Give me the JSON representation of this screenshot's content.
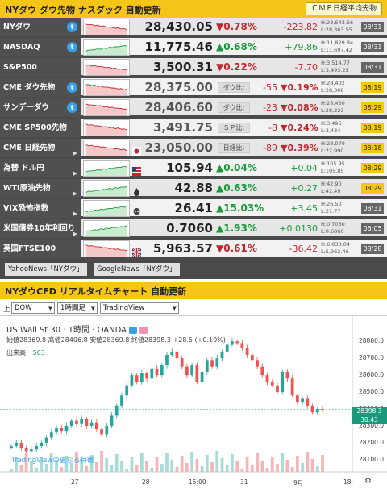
{
  "top_header": {
    "title": "NYダウ ダウ先物 ナスダック 自動更新",
    "button_label": "ＣＭＥ日経平均先物"
  },
  "rows": [
    {
      "name": "NYダウ",
      "icon": "twitter-icon",
      "value": "28,430.05",
      "change_pct": "▼0.78%",
      "diff": "-223.82",
      "high": "H:28,643.66",
      "low": "L:28,363.55",
      "date": "08/31",
      "date_style": "grey",
      "dir": "dn"
    },
    {
      "name": "NASDAQ",
      "icon": "twitter-icon",
      "value": "11,775.46",
      "change_pct": "▲0.68%",
      "diff": "+79.86",
      "high": "H:11,829.84",
      "low": "L:11,697.42",
      "date": "08/31",
      "date_style": "grey",
      "dir": "up"
    },
    {
      "name": "S&P500",
      "icon": "",
      "value": "3,500.31",
      "change_pct": "▼0.22%",
      "diff": "-7.70",
      "high": "H:3,514.77",
      "low": "L:3,493.25",
      "date": "08/31",
      "date_style": "grey",
      "dir": "dn"
    },
    {
      "name": "CME ダウ先物",
      "icon": "twitter-icon",
      "value": "28,375.00",
      "label": "ダウ比:",
      "diff": "-55",
      "change_pct": "▼0.19%",
      "high": "H:28,402",
      "low": "L:28,308",
      "date": "08:19",
      "date_style": "yel",
      "dir": "dn"
    },
    {
      "name": "サンデーダウ",
      "icon": "twitter-icon",
      "value": "28,406.60",
      "label": "ダウ比:",
      "diff": "-23",
      "change_pct": "▼0.08%",
      "high": "H:28,430",
      "low": "L:28,323",
      "date": "08:29",
      "date_style": "yel",
      "dir": "dn"
    },
    {
      "name": "CME SP500先物",
      "icon": "",
      "value": "3,491.75",
      "label": "ＳＰ比:",
      "diff": "-8",
      "change_pct": "▼0.24%",
      "high": "H:3,496",
      "low": "L:3,484",
      "date": "08:19",
      "date_style": "yel",
      "dir": "dn"
    },
    {
      "name": "CME 日経先物",
      "icon": "arrow",
      "value": "23,050.00",
      "label": "日経比:",
      "diff": "-89",
      "change_pct": "▼0.39%",
      "high": "H:23,070",
      "low": "L:22,990",
      "date": "08:18",
      "date_style": "yel",
      "dir": "dn",
      "flag": "japan-flag-icon"
    },
    {
      "name": "為替 ドル円",
      "icon": "arrow",
      "value": "105.94",
      "change_pct": "▲0.04%",
      "diff": "+0.04",
      "high": "H:105.95",
      "low": "L:105.85",
      "date": "08:29",
      "date_style": "yel",
      "dir": "up",
      "flag": "usa-flag-icon"
    },
    {
      "name": "WTI原油先物",
      "icon": "arrow",
      "value": "42.88",
      "change_pct": "▲0.63%",
      "diff": "+0.27",
      "high": "H:42.90",
      "low": "L:42.49",
      "date": "08:29",
      "date_style": "yel",
      "dir": "up",
      "flag": "oil-drop-icon"
    },
    {
      "name": "VIX恐怖指数",
      "icon": "arrow",
      "value": "26.41",
      "change_pct": "▲15.03%",
      "diff": "+3.45",
      "high": "H:26.50",
      "low": "L:21.77",
      "date": "08/31",
      "date_style": "grey",
      "dir": "up",
      "flag": "skull-icon"
    },
    {
      "name": "米国債券10年利回り",
      "icon": "arrow",
      "value": "0.7060",
      "change_pct": "▲1.93%",
      "diff": "+0.0130",
      "high": "H:0.7060",
      "low": "L:0.6860",
      "date": "06:05",
      "date_style": "grey",
      "dir": "up"
    },
    {
      "name": "英国FTSE100",
      "icon": "",
      "value": "5,963.57",
      "change_pct": "▼0.61%",
      "diff": "-36.42",
      "high": "H:6,033.04",
      "low": "L:5,962.46",
      "date": "08/28",
      "date_style": "grey",
      "dir": "dn",
      "flag": "uk-flag-icon"
    }
  ],
  "news": {
    "yahoo": "YahooNews「NYダウ」",
    "google": "GoogleNews「NYダウ」"
  },
  "chart_header": {
    "title": "NYダウCFD リアルタイムチャート 自動更新"
  },
  "toolbar": {
    "label": "上",
    "symbol": "DOW",
    "interval": "1時間足",
    "provider": "TradingView"
  },
  "chart": {
    "title": "US Wall St 30 · 1時間 · OANDA",
    "ohlc": "始値28369.8 高値28406.8 安値28369.8 終値28398.3 +28.5 (+0.10%)",
    "volume_label": "出来高",
    "volume_value": "503",
    "tv_link": "TradingViewの更なる特徴",
    "last_price": "28398.3",
    "countdown": "30:43",
    "yticks": [
      "28800.0",
      "28700.0",
      "28600.0",
      "28500.0",
      "28400.0",
      "28300.0",
      "28200.0",
      "28100.0"
    ],
    "xticks": [
      "27",
      "28",
      "15:00",
      "31",
      "9月",
      "18:"
    ],
    "up_color": "#26a69a",
    "down_color": "#ef5350"
  },
  "chart_data": {
    "type": "candlestick",
    "title": "US Wall St 30 · 1時間 · OANDA",
    "yticks": [
      28800,
      28700,
      28600,
      28500,
      28400,
      28300,
      28200,
      28100
    ],
    "ylim": [
      28080,
      28830
    ],
    "xticks": [
      "27",
      "28",
      "15:00",
      "31",
      "9月",
      "18:"
    ],
    "close": [
      28180,
      28200,
      28170,
      28150,
      28160,
      28180,
      28200,
      28230,
      28260,
      28290,
      28270,
      28300,
      28330,
      28310,
      28340,
      28300,
      28320,
      28280,
      28250,
      28300,
      28360,
      28420,
      28480,
      28540,
      28600,
      28560,
      28610,
      28580,
      28640,
      28600,
      28660,
      28720,
      28740,
      28700,
      28650,
      28600,
      28660,
      28560,
      28620,
      28690,
      28650,
      28700,
      28740,
      28780,
      28800,
      28790,
      28760,
      28720,
      28690,
      28650,
      28600,
      28560,
      28540,
      28500,
      28620,
      28580,
      28480,
      28440,
      28460,
      28420,
      28380,
      28400,
      28398
    ],
    "last": 28398.3
  }
}
